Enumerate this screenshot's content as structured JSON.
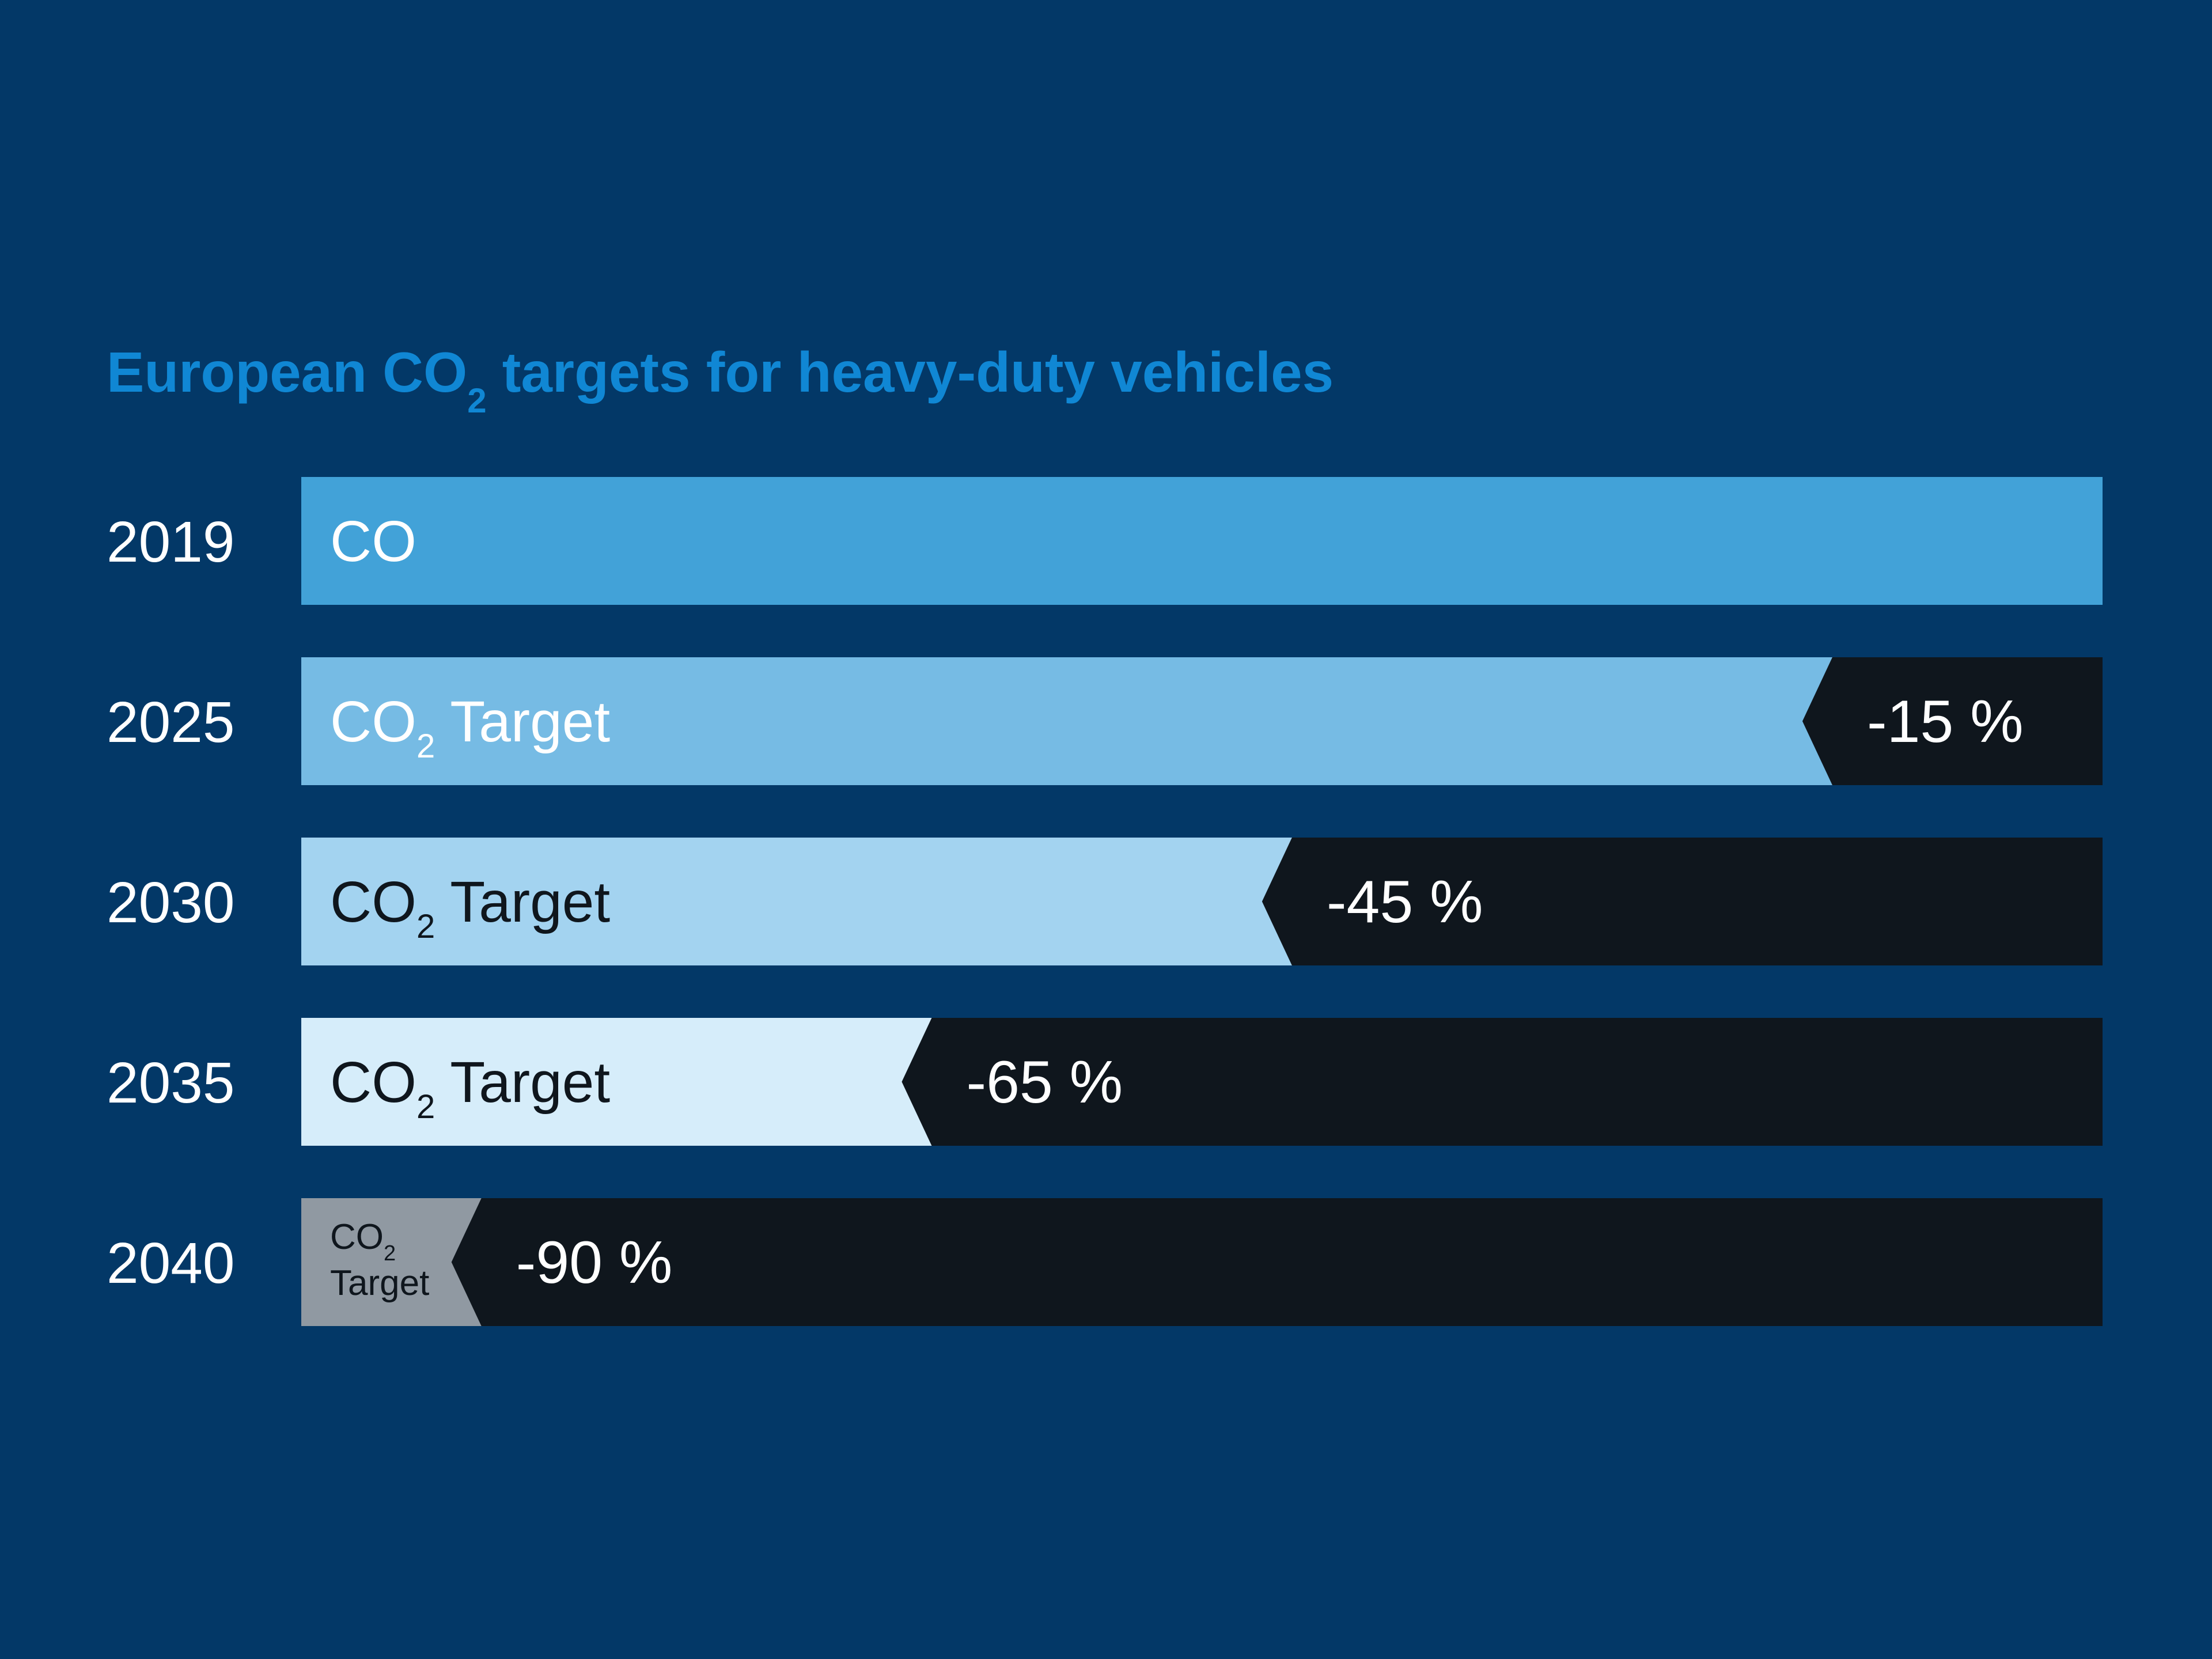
{
  "chart_data": {
    "type": "bar",
    "title_parts": {
      "before": "European CO",
      "subscript": "2",
      "after": " targets for heavy-duty vehicles"
    },
    "categories": [
      "2019",
      "2025",
      "2030",
      "2035",
      "2040"
    ],
    "reduction_percent": [
      0,
      15,
      45,
      65,
      90
    ],
    "bars": [
      {
        "year": "2019",
        "label_main": "CO",
        "label_sub": "",
        "label_suffix": "",
        "reduction_label": ""
      },
      {
        "year": "2025",
        "label_main": "CO",
        "label_sub": "2",
        "label_suffix": "Target",
        "reduction_label": "-15 %"
      },
      {
        "year": "2030",
        "label_main": "CO",
        "label_sub": "2",
        "label_suffix": "Target",
        "reduction_label": "-45 %"
      },
      {
        "year": "2035",
        "label_main": "CO",
        "label_sub": "2",
        "label_suffix": "Target",
        "reduction_label": "-65 %"
      },
      {
        "year": "2040",
        "label_main": "CO",
        "label_sub": "2",
        "label_suffix": "Target",
        "reduction_label": "-90 %"
      }
    ],
    "colors": {
      "background": "#033867",
      "title": "#1087d4",
      "year_text": "#ffffff",
      "reduction_fill": "#0f161d",
      "reduction_text": "#ffffff",
      "target_fills": [
        "#42a2d8",
        "#76bbe4",
        "#a3d3f0",
        "#d6edfa",
        "#9099a2"
      ],
      "target_text": [
        "#ffffff",
        "#ffffff",
        "#0f161d",
        "#0f161d",
        "#0f161d"
      ]
    }
  }
}
